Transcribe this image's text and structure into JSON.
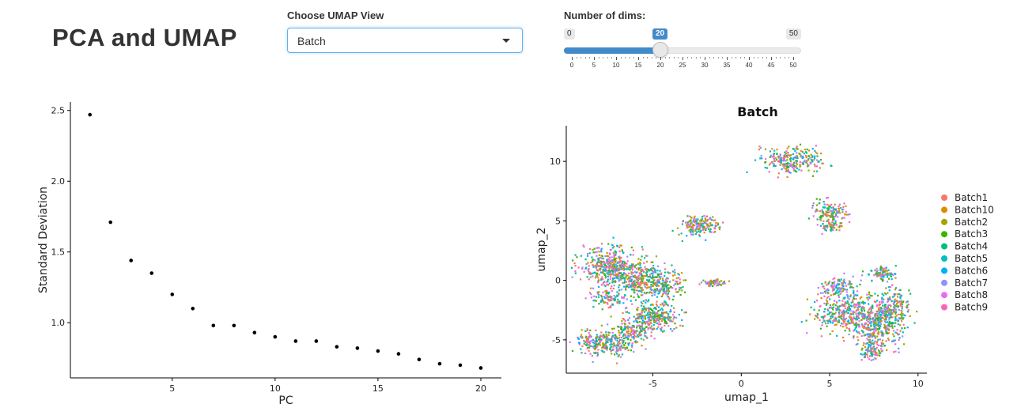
{
  "header": {
    "title": "PCA and UMAP"
  },
  "umap_select": {
    "label": "Choose UMAP View",
    "value": "Batch"
  },
  "dims_slider": {
    "label": "Number of dims:",
    "min": 0,
    "max": 50,
    "value": 20,
    "min_label": "0",
    "max_label": "50",
    "value_label": "20",
    "ticks": [
      "0",
      "5",
      "10",
      "15",
      "20",
      "25",
      "30",
      "35",
      "40",
      "45",
      "50"
    ]
  },
  "chart_data": [
    {
      "type": "scatter",
      "title": "",
      "xlabel": "PC",
      "ylabel": "Standard Deviation",
      "x": [
        1,
        2,
        3,
        4,
        5,
        6,
        7,
        8,
        9,
        10,
        11,
        12,
        13,
        14,
        15,
        16,
        17,
        18,
        19,
        20
      ],
      "y": [
        2.47,
        1.71,
        1.44,
        1.35,
        1.2,
        1.1,
        0.98,
        0.98,
        0.93,
        0.9,
        0.87,
        0.87,
        0.83,
        0.82,
        0.8,
        0.78,
        0.74,
        0.71,
        0.7,
        0.68
      ],
      "xticks": [
        "5",
        "10",
        "15",
        "20"
      ],
      "yticks": [
        "1.0",
        "1.5",
        "2.0",
        "2.5"
      ],
      "xlim": [
        0.05,
        21.0
      ],
      "ylim": [
        0.61,
        2.56
      ],
      "grid": false
    },
    {
      "type": "scatter",
      "title": "Batch",
      "xlabel": "umap_1",
      "ylabel": "umap_2",
      "xticks": [
        "-5",
        "0",
        "5",
        "10"
      ],
      "yticks": [
        "-5",
        "0",
        "5",
        "10"
      ],
      "xlim": [
        -9.9,
        10.5
      ],
      "ylim": [
        -7.8,
        13.0
      ],
      "grid": false,
      "legend_position": "right",
      "series": [
        {
          "name": "Batch1",
          "color": "#F8766D"
        },
        {
          "name": "Batch10",
          "color": "#D89000"
        },
        {
          "name": "Batch2",
          "color": "#A3A500"
        },
        {
          "name": "Batch3",
          "color": "#39B600"
        },
        {
          "name": "Batch4",
          "color": "#00BF7D"
        },
        {
          "name": "Batch5",
          "color": "#00BFC4"
        },
        {
          "name": "Batch6",
          "color": "#00B0F6"
        },
        {
          "name": "Batch7",
          "color": "#9590FF"
        },
        {
          "name": "Batch8",
          "color": "#E76BF3"
        },
        {
          "name": "Batch9",
          "color": "#FF62BC"
        }
      ],
      "clusters": [
        {
          "cx": -7.5,
          "cy": 1.2,
          "rx": 1.6,
          "ry": 1.6,
          "n": 420
        },
        {
          "cx": -5.7,
          "cy": 0.1,
          "rx": 1.3,
          "ry": 1.5,
          "n": 300
        },
        {
          "cx": -4.3,
          "cy": -0.3,
          "rx": 1.0,
          "ry": 1.2,
          "n": 140
        },
        {
          "cx": -7.5,
          "cy": -1.4,
          "rx": 0.9,
          "ry": 0.8,
          "n": 100
        },
        {
          "cx": -5.0,
          "cy": -3.0,
          "rx": 1.5,
          "ry": 1.3,
          "n": 300
        },
        {
          "cx": -7.8,
          "cy": -5.2,
          "rx": 1.6,
          "ry": 1.0,
          "n": 300
        },
        {
          "cx": -6.3,
          "cy": -4.3,
          "rx": 1.0,
          "ry": 0.8,
          "n": 120
        },
        {
          "cx": -2.5,
          "cy": 4.7,
          "rx": 1.1,
          "ry": 0.9,
          "n": 170
        },
        {
          "cx": -1.6,
          "cy": -0.1,
          "rx": 0.7,
          "ry": 0.3,
          "n": 70
        },
        {
          "cx": 2.8,
          "cy": 10.2,
          "rx": 1.7,
          "ry": 1.1,
          "n": 260
        },
        {
          "cx": 5.0,
          "cy": 5.8,
          "rx": 0.9,
          "ry": 0.9,
          "n": 130
        },
        {
          "cx": 5.0,
          "cy": 4.6,
          "rx": 0.6,
          "ry": 0.6,
          "n": 60
        },
        {
          "cx": 8.0,
          "cy": 0.6,
          "rx": 0.7,
          "ry": 0.6,
          "n": 90
        },
        {
          "cx": 5.5,
          "cy": -0.5,
          "rx": 1.1,
          "ry": 0.8,
          "n": 130
        },
        {
          "cx": 5.8,
          "cy": -2.7,
          "rx": 1.6,
          "ry": 1.4,
          "n": 330
        },
        {
          "cx": 7.7,
          "cy": -3.6,
          "rx": 1.4,
          "ry": 2.1,
          "n": 430
        },
        {
          "cx": 8.6,
          "cy": -2.0,
          "rx": 0.9,
          "ry": 1.3,
          "n": 150
        },
        {
          "cx": 7.3,
          "cy": -6.0,
          "rx": 0.6,
          "ry": 0.9,
          "n": 80
        }
      ]
    }
  ]
}
